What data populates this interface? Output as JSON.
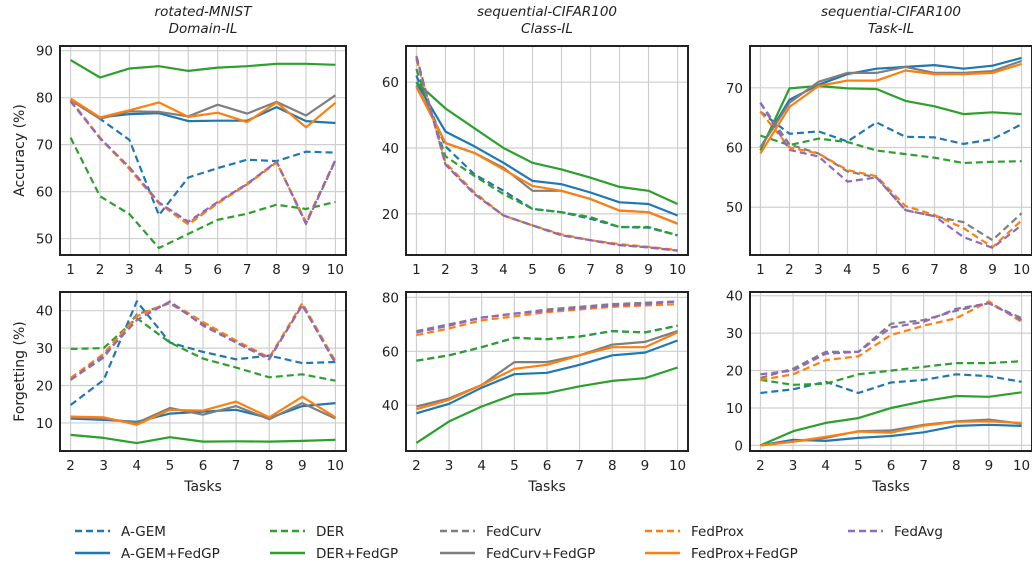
{
  "legend": {
    "position": "bottom",
    "items": [
      {
        "label": "A-GEM",
        "color": "#1f77b4",
        "dash": true
      },
      {
        "label": "A-GEM+FedGP",
        "color": "#1f77b4",
        "dash": false
      },
      {
        "label": "DER",
        "color": "#2ca02c",
        "dash": true
      },
      {
        "label": "DER+FedGP",
        "color": "#2ca02c",
        "dash": false
      },
      {
        "label": "FedCurv",
        "color": "#7f7f7f",
        "dash": true
      },
      {
        "label": "FedCurv+FedGP",
        "color": "#7f7f7f",
        "dash": false
      },
      {
        "label": "FedProx",
        "color": "#ff7f0e",
        "dash": true
      },
      {
        "label": "FedProx+FedGP",
        "color": "#ff7f0e",
        "dash": false
      },
      {
        "label": "FedAvg",
        "color": "#9467bd",
        "dash": true
      }
    ]
  },
  "chart_data": [
    {
      "type": "line",
      "title": "rotated-MNIST",
      "subtitle": "Domain-IL",
      "xlabel": "",
      "ylabel": "Accuracy (%)",
      "grid": true,
      "x": [
        1,
        2,
        3,
        4,
        5,
        6,
        7,
        8,
        9,
        10
      ],
      "xticks": [
        1,
        2,
        3,
        4,
        5,
        6,
        7,
        8,
        9,
        10
      ],
      "yticks": [
        50,
        60,
        70,
        80,
        90
      ],
      "ylim": [
        46.5,
        91
      ],
      "series": [
        {
          "name": "A-GEM",
          "values": [
            79.5,
            75.5,
            71,
            55,
            63,
            65,
            66.8,
            66.5,
            68.5,
            68.3
          ]
        },
        {
          "name": "A-GEM+FedGP",
          "values": [
            79.5,
            75.8,
            76.5,
            76.7,
            75,
            75.1,
            75.1,
            78,
            75,
            74.6
          ]
        },
        {
          "name": "DER",
          "values": [
            71.5,
            59,
            55.2,
            48,
            51,
            54,
            55.3,
            57.2,
            56.3,
            57.8
          ]
        },
        {
          "name": "DER+FedGP",
          "values": [
            88,
            84.3,
            86.2,
            86.7,
            85.7,
            86.4,
            86.7,
            87.2,
            87.2,
            87
          ]
        },
        {
          "name": "FedCurv",
          "values": [
            79.5,
            71.3,
            65,
            57.6,
            53.3,
            57.6,
            61.7,
            66.3,
            53.1,
            66.6
          ]
        },
        {
          "name": "FedCurv+FedGP",
          "values": [
            79.5,
            75.5,
            77.1,
            77,
            76,
            78.5,
            76.6,
            79.1,
            76.2,
            80.5
          ]
        },
        {
          "name": "FedProx",
          "values": [
            79.5,
            71.5,
            64.8,
            57.5,
            53,
            57.5,
            61.5,
            66.2,
            53.5,
            66.8
          ]
        },
        {
          "name": "FedProx+FedGP",
          "values": [
            79.8,
            75.8,
            77.3,
            79,
            75.9,
            76.8,
            74.8,
            79,
            73.7,
            78.9
          ]
        },
        {
          "name": "FedAvg",
          "values": [
            79.2,
            71.4,
            65.2,
            57.7,
            53.6,
            57.8,
            61.6,
            66.4,
            53.2,
            66.7
          ]
        }
      ]
    },
    {
      "type": "line",
      "title": "sequential-CIFAR100",
      "subtitle": "Class-IL",
      "xlabel": "",
      "ylabel": "",
      "grid": true,
      "x": [
        1,
        2,
        3,
        4,
        5,
        6,
        7,
        8,
        9,
        10
      ],
      "xticks": [
        1,
        2,
        3,
        4,
        5,
        6,
        7,
        8,
        9,
        10
      ],
      "yticks": [
        20,
        40,
        60
      ],
      "ylim": [
        7.5,
        71
      ],
      "series": [
        {
          "name": "A-GEM",
          "values": [
            62,
            40.5,
            32,
            27,
            21.5,
            20.5,
            18.5,
            16,
            15.8,
            13.5
          ]
        },
        {
          "name": "A-GEM+FedGP",
          "values": [
            60,
            45,
            40.5,
            35.5,
            30,
            29,
            26.5,
            23.5,
            23,
            19.5
          ]
        },
        {
          "name": "DER",
          "values": [
            64,
            37.5,
            31.5,
            26,
            21.5,
            20.5,
            19,
            16,
            16,
            13.5
          ]
        },
        {
          "name": "DER+FedGP",
          "values": [
            60,
            52,
            46,
            40,
            35.5,
            33.5,
            31,
            28.2,
            27,
            23
          ]
        },
        {
          "name": "FedCurv",
          "values": [
            68,
            35,
            26,
            19.5,
            16.5,
            13.5,
            12,
            10.5,
            9.8,
            8.8
          ]
        },
        {
          "name": "FedCurv+FedGP",
          "values": [
            59,
            41.5,
            38.5,
            34,
            27,
            27,
            24.5,
            21,
            20.5,
            17
          ]
        },
        {
          "name": "FedProx",
          "values": [
            67,
            35.5,
            26.5,
            19.5,
            16.5,
            13.8,
            12,
            10.8,
            10,
            9
          ]
        },
        {
          "name": "FedProx+FedGP",
          "values": [
            58.5,
            41.5,
            38.5,
            33.5,
            28.5,
            27,
            24.5,
            21,
            20.5,
            17
          ]
        },
        {
          "name": "FedAvg",
          "values": [
            67.5,
            35,
            26,
            19.5,
            16.5,
            13.5,
            12,
            10.5,
            9.8,
            8.8
          ]
        }
      ]
    },
    {
      "type": "line",
      "title": "sequential-CIFAR100",
      "subtitle": "Task-IL",
      "xlabel": "",
      "ylabel": "",
      "grid": true,
      "x": [
        1,
        2,
        3,
        4,
        5,
        6,
        7,
        8,
        9,
        10
      ],
      "xticks": [
        1,
        2,
        3,
        4,
        5,
        6,
        7,
        8,
        9,
        10
      ],
      "yticks": [
        50,
        60,
        70
      ],
      "ylim": [
        42,
        77
      ],
      "series": [
        {
          "name": "A-GEM",
          "values": [
            66,
            62.3,
            62.7,
            61,
            64.2,
            61.8,
            61.7,
            60.6,
            61.4,
            63.9
          ]
        },
        {
          "name": "A-GEM+FedGP",
          "values": [
            60,
            68,
            70.5,
            72.3,
            73.2,
            73.5,
            73.8,
            73.2,
            73.7,
            75
          ]
        },
        {
          "name": "DER",
          "values": [
            62,
            60.4,
            61.5,
            60.9,
            59.5,
            58.9,
            58.3,
            57.4,
            57.6,
            57.7
          ]
        },
        {
          "name": "DER+FedGP",
          "values": [
            59.5,
            69.9,
            70.3,
            69.9,
            69.8,
            67.8,
            66.9,
            65.6,
            65.9,
            65.6
          ]
        },
        {
          "name": "FedCurv",
          "values": [
            67.5,
            60.5,
            59,
            56,
            55,
            49.5,
            48.5,
            47.5,
            44.5,
            49
          ]
        },
        {
          "name": "FedCurv+FedGP",
          "values": [
            60,
            67.5,
            71,
            72.5,
            72.5,
            73.5,
            72.5,
            72.5,
            72.8,
            74.5
          ]
        },
        {
          "name": "FedProx",
          "values": [
            66,
            60,
            59,
            56.2,
            55.2,
            50.2,
            48.7,
            46.5,
            43.3,
            47.8
          ]
        },
        {
          "name": "FedProx+FedGP",
          "values": [
            59,
            66.8,
            70.3,
            71.2,
            71.2,
            72.9,
            72.3,
            72.3,
            72.5,
            74
          ]
        },
        {
          "name": "FedAvg",
          "values": [
            67.5,
            59.6,
            58.5,
            54.3,
            55,
            49.5,
            48.5,
            45,
            43.2,
            47
          ]
        }
      ]
    },
    {
      "type": "line",
      "title": "",
      "subtitle": "",
      "xlabel": "Tasks",
      "ylabel": "Forgetting (%)",
      "grid": true,
      "x": [
        2,
        3,
        4,
        5,
        6,
        7,
        8,
        9,
        10
      ],
      "xticks": [
        2,
        3,
        4,
        5,
        6,
        7,
        8,
        9,
        10
      ],
      "yticks": [
        10,
        20,
        30,
        40
      ],
      "ylim": [
        2.5,
        45
      ],
      "series": [
        {
          "name": "A-GEM",
          "values": [
            14.8,
            21.5,
            42.5,
            31.5,
            29,
            27,
            28,
            26,
            26.3
          ]
        },
        {
          "name": "A-GEM+FedGP",
          "values": [
            11.2,
            10.8,
            10.3,
            12.5,
            13,
            13.5,
            11.3,
            14.5,
            15.3
          ]
        },
        {
          "name": "DER",
          "values": [
            29.8,
            30,
            38,
            31.5,
            27.2,
            24.8,
            22.2,
            23,
            21.3
          ]
        },
        {
          "name": "DER+FedGP",
          "values": [
            6.8,
            6,
            4.6,
            6.2,
            5,
            5.1,
            5,
            5.2,
            5.5
          ]
        },
        {
          "name": "FedCurv",
          "values": [
            21.5,
            27.5,
            39,
            42,
            36.5,
            31.5,
            27,
            41.5,
            26
          ]
        },
        {
          "name": "FedCurv+FedGP",
          "values": [
            11.5,
            11.2,
            10,
            14,
            12.2,
            14.5,
            11,
            15.3,
            11.2
          ]
        },
        {
          "name": "FedProx",
          "values": [
            22,
            28.5,
            38.5,
            42.3,
            37,
            32,
            27.5,
            42,
            26.5
          ]
        },
        {
          "name": "FedProx+FedGP",
          "values": [
            11.7,
            11.5,
            9.5,
            13.5,
            13.3,
            15.7,
            11.5,
            17,
            11.5
          ]
        },
        {
          "name": "FedAvg",
          "values": [
            21.5,
            28,
            37.5,
            42.5,
            36,
            31.5,
            27.2,
            41.5,
            26
          ]
        }
      ]
    },
    {
      "type": "line",
      "title": "",
      "subtitle": "",
      "xlabel": "Tasks",
      "ylabel": "",
      "grid": true,
      "x": [
        2,
        3,
        4,
        5,
        6,
        7,
        8,
        9,
        10
      ],
      "xticks": [
        2,
        3,
        4,
        5,
        6,
        7,
        8,
        9,
        10
      ],
      "yticks": [
        40,
        60,
        80
      ],
      "ylim": [
        23,
        82
      ],
      "series": [
        {
          "name": "A-GEM",
          "values": [
            56.5,
            58.5,
            61.5,
            65,
            64.5,
            65.5,
            67.5,
            67,
            69.5
          ]
        },
        {
          "name": "A-GEM+FedGP",
          "values": [
            37,
            40.5,
            46.5,
            51.5,
            52,
            55,
            58.5,
            59.5,
            64
          ]
        },
        {
          "name": "DER",
          "values": [
            56.5,
            58.5,
            61.5,
            65,
            64.5,
            65.5,
            67.5,
            67,
            69.5
          ]
        },
        {
          "name": "DER+FedGP",
          "values": [
            26,
            34,
            39.5,
            44,
            44.5,
            47,
            49,
            50,
            54
          ]
        },
        {
          "name": "FedCurv",
          "values": [
            67.5,
            70,
            72.5,
            74,
            75.5,
            76.5,
            77.5,
            78,
            78.5
          ]
        },
        {
          "name": "FedCurv+FedGP",
          "values": [
            39.5,
            42.5,
            47.5,
            56,
            56,
            58.5,
            62.5,
            63.5,
            67.5
          ]
        },
        {
          "name": "FedProx",
          "values": [
            66,
            68.5,
            71.5,
            73,
            74.5,
            75.5,
            76.5,
            77,
            77.5
          ]
        },
        {
          "name": "FedProx+FedGP",
          "values": [
            38.5,
            42,
            47.5,
            53.5,
            55,
            58.5,
            61.5,
            61.5,
            67
          ]
        },
        {
          "name": "FedAvg",
          "values": [
            67,
            69.5,
            72.5,
            74,
            75,
            76,
            77,
            77.5,
            78.5
          ]
        }
      ]
    },
    {
      "type": "line",
      "title": "",
      "subtitle": "",
      "xlabel": "Tasks",
      "ylabel": "",
      "grid": true,
      "x": [
        2,
        3,
        4,
        5,
        6,
        7,
        8,
        9,
        10
      ],
      "xticks": [
        2,
        3,
        4,
        5,
        6,
        7,
        8,
        9,
        10
      ],
      "yticks": [
        0,
        10,
        20,
        30,
        40
      ],
      "ylim": [
        -1.5,
        41
      ],
      "series": [
        {
          "name": "A-GEM",
          "values": [
            14,
            15,
            17,
            14,
            16.8,
            17.5,
            19,
            18.5,
            17
          ]
        },
        {
          "name": "A-GEM+FedGP",
          "values": [
            0,
            1.5,
            1.2,
            2,
            2.5,
            3.5,
            5.2,
            5.5,
            5.2
          ]
        },
        {
          "name": "DER",
          "values": [
            17.5,
            16.2,
            16.5,
            19,
            20,
            21,
            22,
            22,
            22.5
          ]
        },
        {
          "name": "DER+FedGP",
          "values": [
            0,
            3.8,
            6,
            7.3,
            10,
            11.8,
            13.2,
            13,
            14.2
          ]
        },
        {
          "name": "FedCurv",
          "values": [
            18,
            20.5,
            25,
            25,
            32.5,
            33.5,
            36,
            38,
            34
          ]
        },
        {
          "name": "FedCurv+FedGP",
          "values": [
            0,
            1,
            2,
            3.8,
            4,
            5.5,
            6.4,
            6.9,
            5.8
          ]
        },
        {
          "name": "FedProx",
          "values": [
            17.5,
            19,
            22.8,
            23.8,
            29.5,
            32,
            34,
            38.5,
            33
          ]
        },
        {
          "name": "FedProx+FedGP",
          "values": [
            0,
            1,
            2.3,
            3.7,
            3.4,
            5.3,
            6.3,
            6.4,
            6
          ]
        },
        {
          "name": "FedAvg",
          "values": [
            19,
            20,
            24.5,
            25,
            31.5,
            33,
            36.5,
            38,
            33.5
          ]
        }
      ]
    }
  ]
}
